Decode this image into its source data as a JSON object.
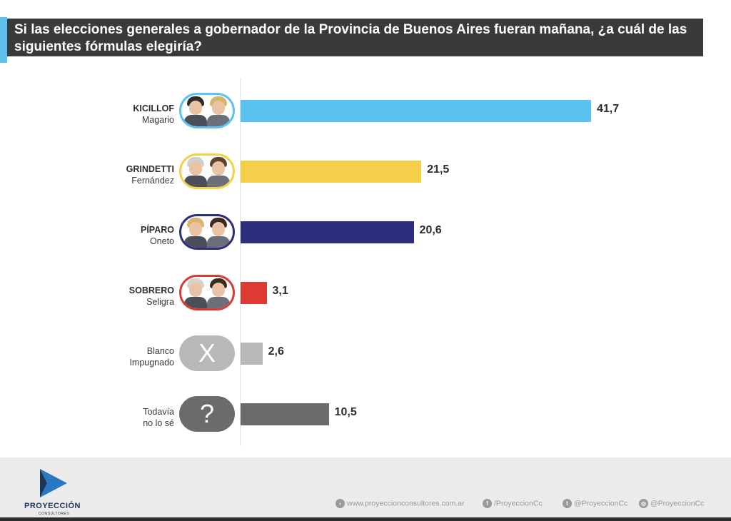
{
  "header": {
    "question": "Si las elecciones generales a gobernador de la Provincia de Buenos Aires fueran mañana, ¿a cuál de las siguientes fórmulas elegiría?"
  },
  "colors": {
    "accent": "#5fc1ec",
    "title_bg": "#3a3a3a",
    "footer_bg": "#ebebeb"
  },
  "chart_data": {
    "type": "bar",
    "orientation": "horizontal",
    "categories": [
      "KICILLOF Magario",
      "GRINDETTI Fernández",
      "PÍPARO Oneto",
      "SOBRERO Seligra",
      "Blanco Impugnado",
      "Todavía no lo sé"
    ],
    "values": [
      41.7,
      21.5,
      20.6,
      3.1,
      2.6,
      10.5
    ],
    "value_labels": [
      "41,7",
      "21,5",
      "20,6",
      "3,1",
      "2,6",
      "10,5"
    ],
    "colors": [
      "#5bc2f2",
      "#f4d04a",
      "#2d2f7d",
      "#dc3a33",
      "#b8b8b8",
      "#6b6b6b"
    ],
    "rows": [
      {
        "line1": "KICILLOF",
        "line2": "Magario",
        "bold": true,
        "icon": "candidates-photo"
      },
      {
        "line1": "GRINDETTI",
        "line2": "Fernández",
        "bold": true,
        "icon": "candidates-photo"
      },
      {
        "line1": "PÍPARO",
        "line2": "Oneto",
        "bold": true,
        "icon": "candidates-photo"
      },
      {
        "line1": "SOBRERO",
        "line2": "Seligra",
        "bold": true,
        "icon": "candidates-photo"
      },
      {
        "line1": "Blanco",
        "line2": "Impugnado",
        "bold": false,
        "icon": "x-icon",
        "glyph": "X"
      },
      {
        "line1": "Todavía",
        "line2": "no lo sé",
        "bold": false,
        "icon": "question-icon",
        "glyph": "?"
      }
    ],
    "xlim": [
      0,
      45
    ],
    "grid": false,
    "legend": "none"
  },
  "footer": {
    "brand": "PROYECCIÓN",
    "brand_sub": "CONSULTORES",
    "web": "www.proyeccionconsultores.com.ar",
    "facebook": "/ProyeccionCc",
    "twitter": "@ProyeccionCc",
    "instagram": "@ProyeccionCc"
  }
}
